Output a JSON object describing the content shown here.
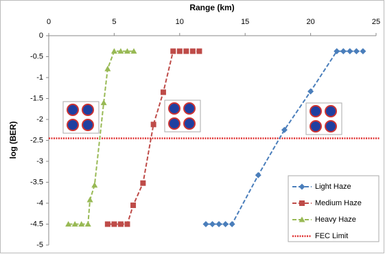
{
  "chart_data": {
    "type": "line",
    "x_label": "Range (km)",
    "y_label": "log (BER)",
    "xlim": [
      0,
      25
    ],
    "xticks": [
      0,
      5,
      10,
      15,
      20,
      25
    ],
    "ylim": [
      -5,
      0
    ],
    "yticks": [
      0,
      -0.5,
      -1,
      -1.5,
      -2,
      -2.5,
      -3,
      -3.5,
      -4,
      -4.5,
      -5
    ],
    "grid": false,
    "legend": "bottom-right",
    "series": [
      {
        "name": "Light Haze",
        "color": "#4a7ebb",
        "marker": "diamond",
        "x": [
          12,
          12.5,
          13,
          13.5,
          14,
          16,
          18,
          20,
          22,
          22.5,
          23,
          23.5,
          24
        ],
        "values": [
          -4.5,
          -4.5,
          -4.5,
          -4.5,
          -4.5,
          -3.33,
          -2.25,
          -1.33,
          -0.37,
          -0.37,
          -0.37,
          -0.37,
          -0.37
        ]
      },
      {
        "name": "Medium Haze",
        "color": "#be4b48",
        "marker": "square",
        "x": [
          4.5,
          5,
          5.5,
          6,
          6.45,
          7.2,
          8,
          8.75,
          9.5,
          10,
          10.5,
          11,
          11.5
        ],
        "values": [
          -4.5,
          -4.5,
          -4.5,
          -4.5,
          -4.05,
          -3.52,
          -2.12,
          -1.35,
          -0.37,
          -0.37,
          -0.37,
          -0.37,
          -0.37
        ]
      },
      {
        "name": "Heavy Haze",
        "color": "#98b954",
        "marker": "triangle",
        "x": [
          1.5,
          2,
          2.5,
          3,
          3.15,
          3.5,
          4.2,
          4.5,
          5,
          5.5,
          6,
          6.5
        ],
        "values": [
          -4.5,
          -4.5,
          -4.5,
          -4.5,
          -3.92,
          -3.57,
          -1.6,
          -0.79,
          -0.37,
          -0.37,
          -0.37,
          -0.37
        ]
      }
    ],
    "fec_limit": {
      "name": "FEC Limit",
      "value": -2.45,
      "color": "#e03030"
    }
  }
}
